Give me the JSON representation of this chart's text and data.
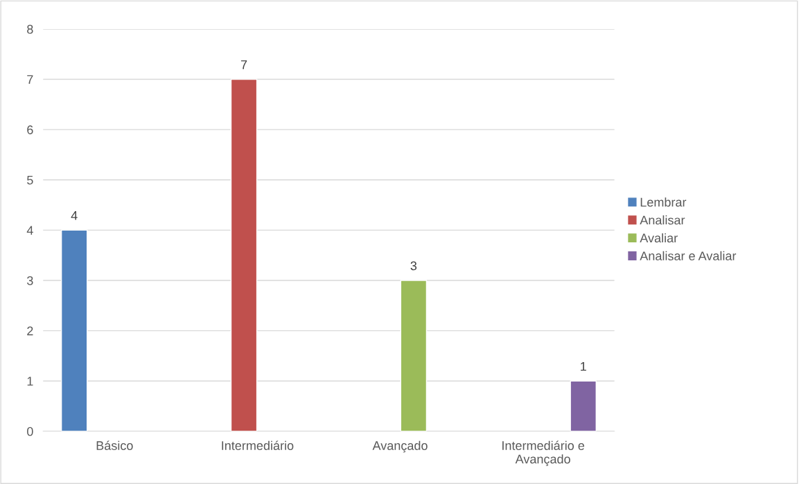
{
  "chart_data": {
    "type": "bar",
    "categories": [
      "Básico",
      "Intermediário",
      "Avançado",
      "Intermediário e\nAvançado"
    ],
    "series": [
      {
        "name": "Lembrar",
        "color": "#4f81bd",
        "values": [
          4,
          null,
          null,
          null
        ]
      },
      {
        "name": "Analisar",
        "color": "#c0504d",
        "values": [
          null,
          7,
          null,
          null
        ]
      },
      {
        "name": "Avaliar",
        "color": "#9bbb59",
        "values": [
          null,
          null,
          3,
          null
        ]
      },
      {
        "name": "Analisar e Avaliar",
        "color": "#8064a2",
        "values": [
          null,
          null,
          null,
          1
        ]
      }
    ],
    "ylim": [
      0,
      8
    ],
    "yticks": [
      0,
      1,
      2,
      3,
      4,
      5,
      6,
      7,
      8
    ],
    "grid": "y",
    "legend": "right",
    "data_labels": true
  }
}
